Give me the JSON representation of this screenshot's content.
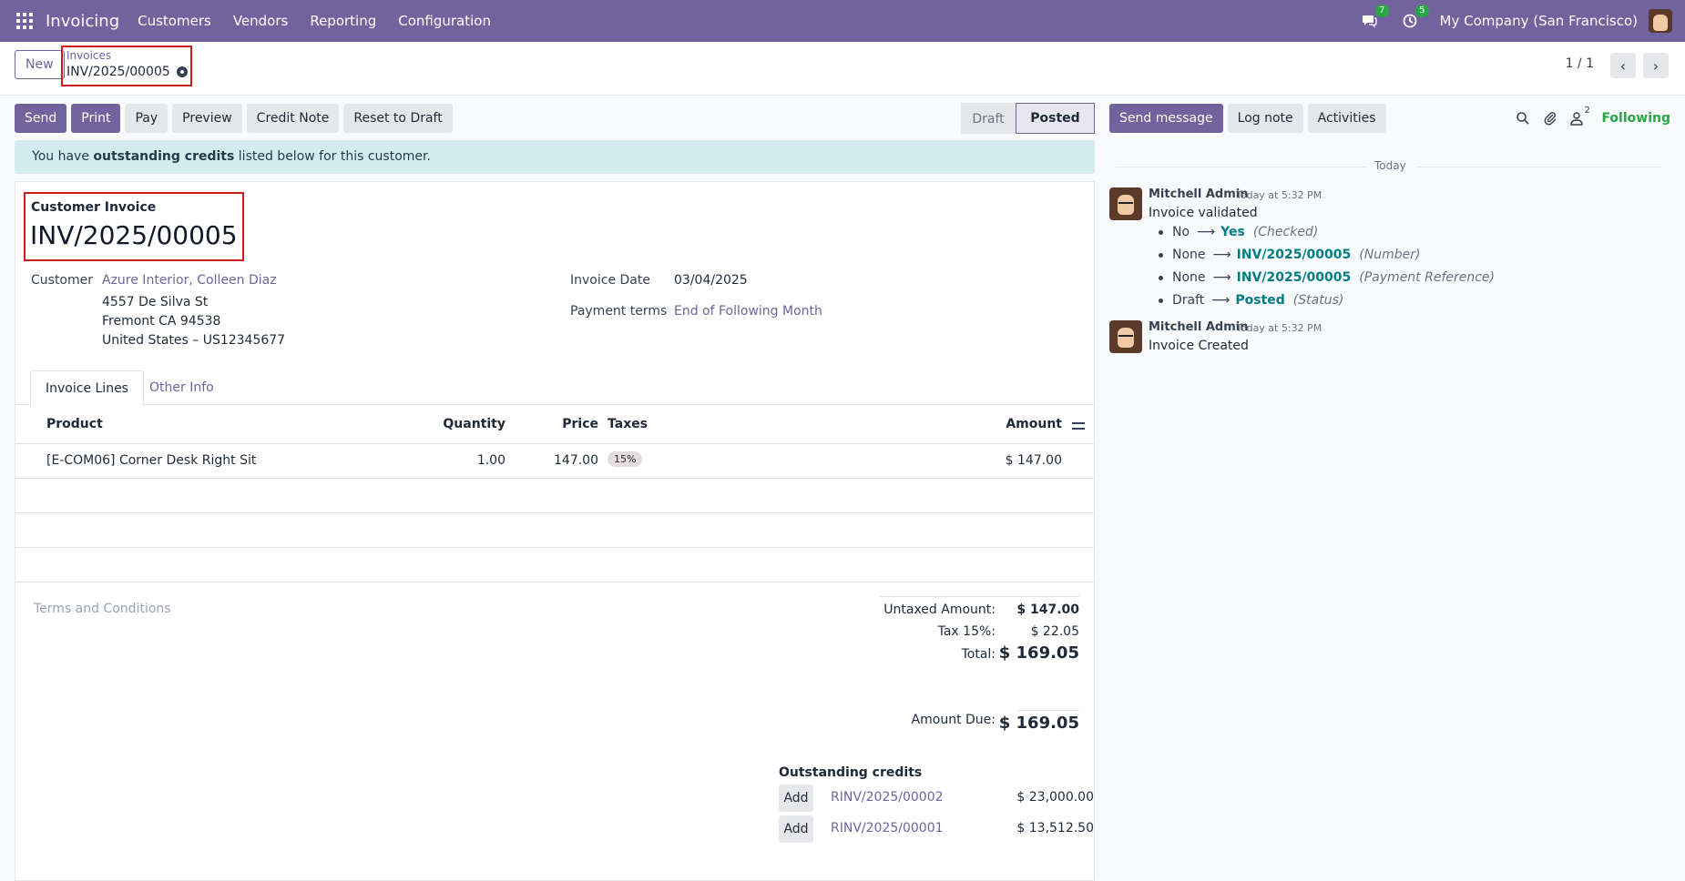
{
  "navbar": {
    "app_name": "Invoicing",
    "menu": [
      "Customers",
      "Vendors",
      "Reporting",
      "Configuration"
    ],
    "messages_count": "7",
    "activities_count": "5",
    "company": "My Company (San Francisco)"
  },
  "control": {
    "new_label": "New",
    "breadcrumb_parent": "Invoices",
    "breadcrumb_current": "INV/2025/00005",
    "pager": "1 / 1"
  },
  "actions": {
    "send": "Send",
    "print": "Print",
    "pay": "Pay",
    "preview": "Preview",
    "credit_note": "Credit Note",
    "reset": "Reset to Draft"
  },
  "status": {
    "draft": "Draft",
    "posted": "Posted"
  },
  "alert": {
    "prefix": "You have ",
    "bold": "outstanding credits",
    "suffix": " listed below for this customer."
  },
  "invoice": {
    "type_label": "Customer Invoice",
    "number": "INV/2025/00005",
    "customer_label": "Customer",
    "customer_name": "Azure Interior, Colleen Diaz",
    "address1": "4557 De Silva St",
    "address2": "Fremont CA 94538",
    "address3": "United States – US12345677",
    "date_label": "Invoice Date",
    "date_value": "03/04/2025",
    "terms_label": "Payment terms",
    "terms_value": "End of Following Month"
  },
  "tabs": {
    "lines": "Invoice Lines",
    "other": "Other Info"
  },
  "lines": {
    "headers": {
      "product": "Product",
      "quantity": "Quantity",
      "price": "Price",
      "taxes": "Taxes",
      "amount": "Amount"
    },
    "rows": [
      {
        "product": "[E-COM06] Corner Desk Right Sit",
        "quantity": "1.00",
        "price": "147.00",
        "tax": "15%",
        "amount": "$ 147.00"
      }
    ]
  },
  "terms_placeholder": "Terms and Conditions",
  "totals": {
    "untaxed_label": "Untaxed Amount:",
    "untaxed_value": "$ 147.00",
    "tax_label": "Tax 15%:",
    "tax_value": "$ 22.05",
    "total_label": "Total:",
    "total_value": "$ 169.05",
    "due_label": "Amount Due:",
    "due_value": "$ 169.05"
  },
  "outstanding": {
    "title": "Outstanding credits",
    "add_label": "Add",
    "items": [
      {
        "ref": "RINV/2025/00002",
        "amount": "$ 23,000.00"
      },
      {
        "ref": "RINV/2025/00001",
        "amount": "$ 13,512.50"
      }
    ]
  },
  "chatter": {
    "send_message": "Send message",
    "log_note": "Log note",
    "activities": "Activities",
    "followers_count": "2",
    "following": "Following",
    "today": "Today",
    "messages": [
      {
        "author": "Mitchell Admin",
        "time": "Today at 5:32 PM",
        "body": "Invoice validated",
        "tracking": [
          {
            "old": "No",
            "new": "Yes",
            "field": "(Checked)"
          },
          {
            "old": "None",
            "new": "INV/2025/00005",
            "field": "(Number)"
          },
          {
            "old": "None",
            "new": "INV/2025/00005",
            "field": "(Payment Reference)"
          },
          {
            "old": "Draft",
            "new": "Posted",
            "field": "(Status)"
          }
        ]
      },
      {
        "author": "Mitchell Admin",
        "time": "Today at 5:32 PM",
        "body": "Invoice Created"
      }
    ]
  }
}
